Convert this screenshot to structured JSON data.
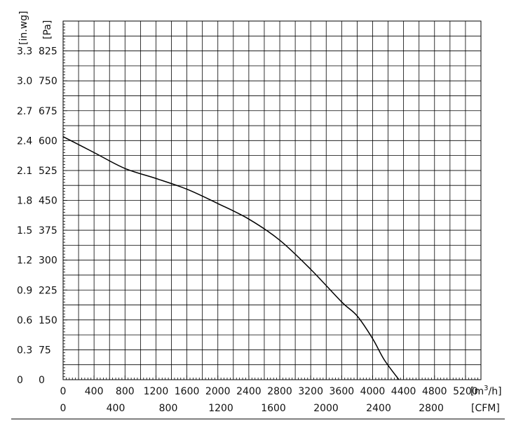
{
  "chart_data": {
    "type": "line",
    "title": "",
    "grid": true,
    "x_primary": {
      "unit": "[m³/h]",
      "unit_base": "[m",
      "unit_sup": "3",
      "unit_tail": "/h]",
      "range": [
        0,
        5400
      ],
      "ticks": [
        "0",
        "400",
        "800",
        "1200",
        "1600",
        "2000",
        "2400",
        "2800",
        "3200",
        "3600",
        "4000",
        "4400",
        "4800",
        "5200"
      ]
    },
    "x_secondary": {
      "unit": "[CFM]",
      "ticks": [
        "0",
        "400",
        "800",
        "1200",
        "1600",
        "2000",
        "2400",
        "2800"
      ],
      "tick_values": [
        0,
        400,
        800,
        1200,
        1600,
        2000,
        2400,
        2800
      ],
      "m3h_per_cfm": 1.699
    },
    "y_primary": {
      "unit": "[Pa]",
      "range": [
        0,
        900
      ],
      "ticks": [
        "0",
        "75",
        "150",
        "225",
        "300",
        "375",
        "450",
        "525",
        "600",
        "675",
        "750",
        "825"
      ]
    },
    "y_secondary": {
      "unit": "[in.wg]",
      "ticks": [
        "0",
        "0.3",
        "0.6",
        "0.9",
        "1.2",
        "1.5",
        "1.8",
        "2.1",
        "2.4",
        "2.7",
        "3.0",
        "3.3"
      ]
    },
    "series": [
      {
        "x": [
          0,
          400,
          800,
          1200,
          1600,
          2000,
          2400,
          2800,
          3200,
          3600,
          3800,
          4000,
          4150,
          4340
        ],
        "y": [
          610,
          570,
          530,
          505,
          478,
          442,
          403,
          350,
          277,
          195,
          160,
          103,
          50,
          0
        ]
      }
    ],
    "colors": {
      "line": "#000000",
      "grid": "#000000",
      "axis": "#000000"
    }
  }
}
